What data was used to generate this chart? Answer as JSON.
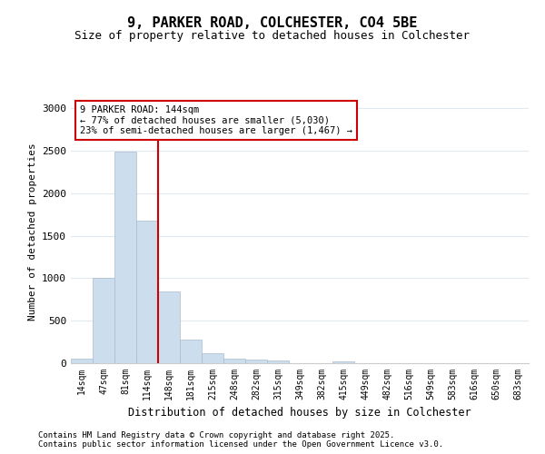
{
  "title": "9, PARKER ROAD, COLCHESTER, CO4 5BE",
  "subtitle": "Size of property relative to detached houses in Colchester",
  "xlabel": "Distribution of detached houses by size in Colchester",
  "ylabel": "Number of detached properties",
  "categories": [
    "14sqm",
    "47sqm",
    "81sqm",
    "114sqm",
    "148sqm",
    "181sqm",
    "215sqm",
    "248sqm",
    "282sqm",
    "315sqm",
    "349sqm",
    "382sqm",
    "415sqm",
    "449sqm",
    "482sqm",
    "516sqm",
    "549sqm",
    "583sqm",
    "616sqm",
    "650sqm",
    "683sqm"
  ],
  "values": [
    50,
    1010,
    2490,
    1680,
    840,
    275,
    120,
    55,
    45,
    30,
    0,
    0,
    18,
    0,
    0,
    0,
    0,
    0,
    0,
    0,
    0
  ],
  "bar_color": "#ccdded",
  "bar_edge_color": "#aabbcc",
  "vline_color": "#cc0000",
  "annotation_text": "9 PARKER ROAD: 144sqm\n← 77% of detached houses are smaller (5,030)\n23% of semi-detached houses are larger (1,467) →",
  "annotation_box_color": "#cc0000",
  "background_color": "#ffffff",
  "grid_color": "#e0e8f0",
  "footer1": "Contains HM Land Registry data © Crown copyright and database right 2025.",
  "footer2": "Contains public sector information licensed under the Open Government Licence v3.0.",
  "ylim": [
    0,
    3100
  ],
  "yticks": [
    0,
    500,
    1000,
    1500,
    2000,
    2500,
    3000
  ],
  "title_fontsize": 11,
  "subtitle_fontsize": 9
}
